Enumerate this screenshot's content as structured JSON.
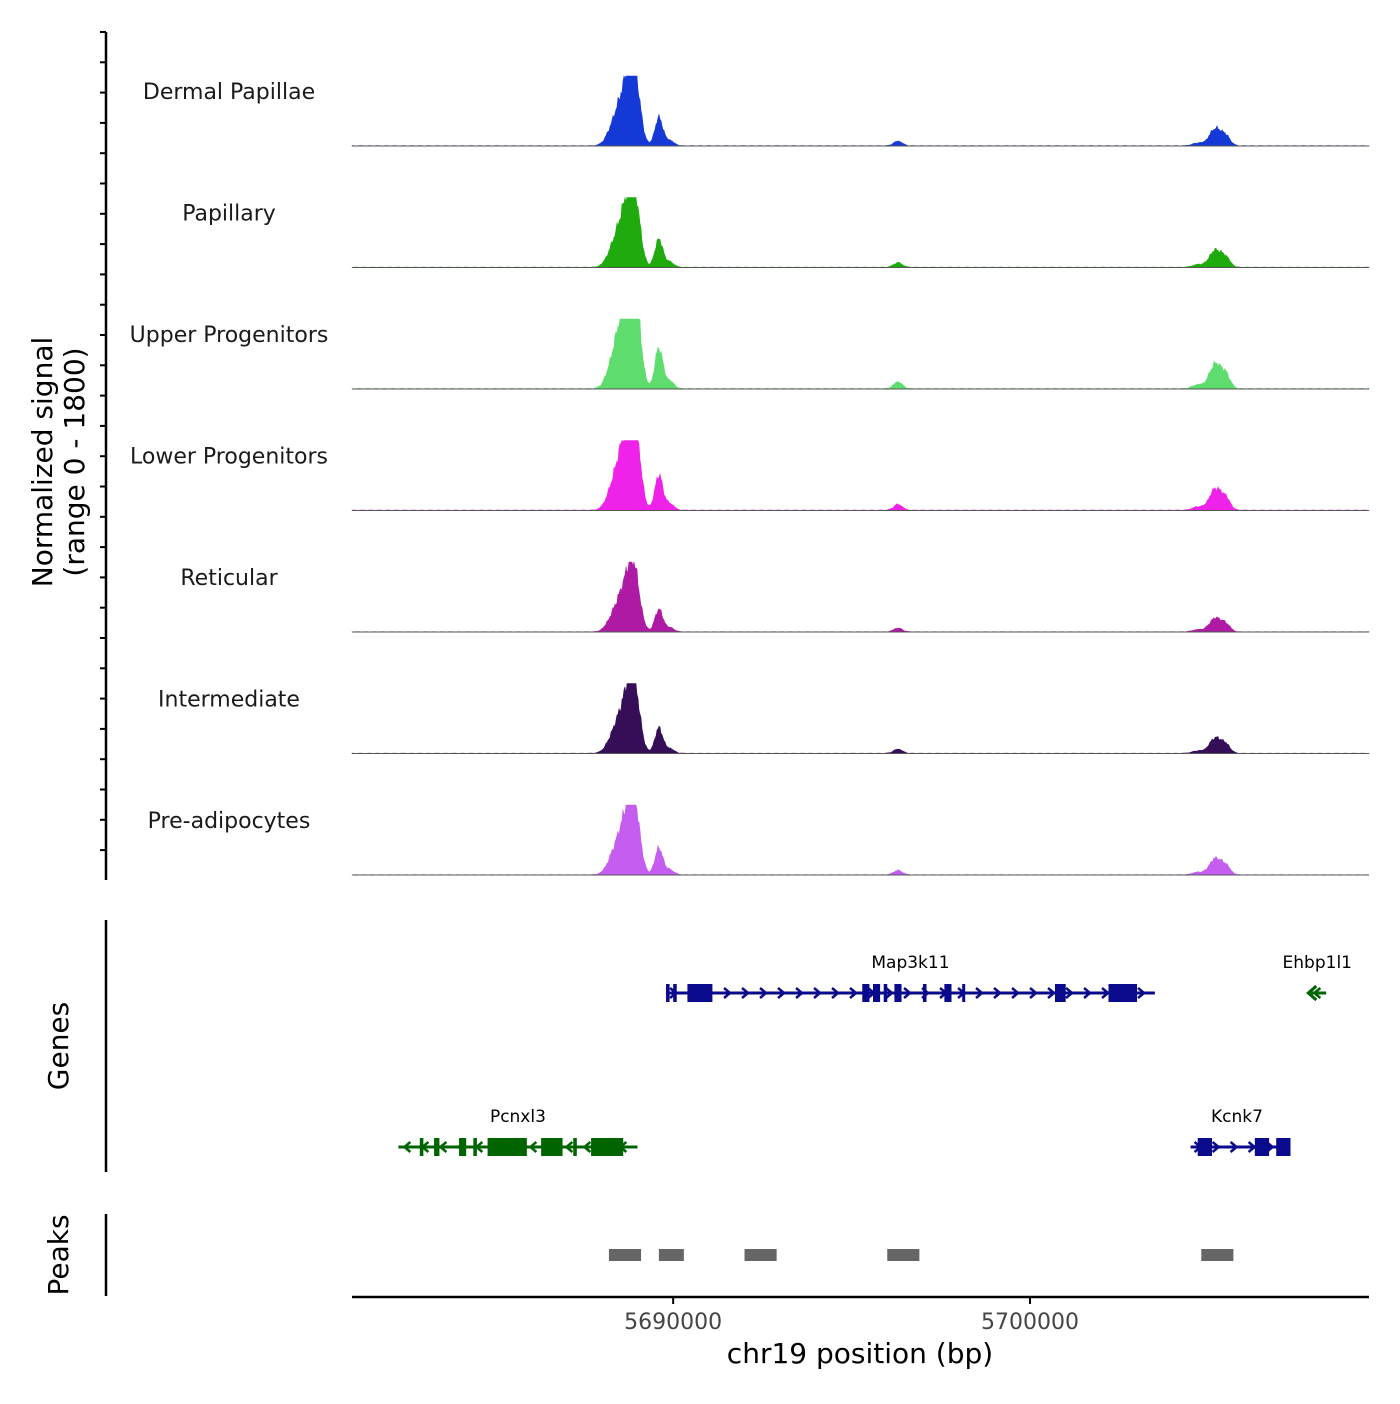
{
  "chart_data": {
    "type": "area",
    "title": "",
    "chromosome": "chr19",
    "xlabel": "chr19 position (bp)",
    "xlim": [
      5681000,
      5709500
    ],
    "x_ticks": [
      {
        "value": 5690000,
        "label": "5690000"
      },
      {
        "value": 5700000,
        "label": "5700000"
      }
    ],
    "signal_ylabel_line1": "Normalized signal",
    "signal_ylabel_line2": "(range 0 - 1800)",
    "ylim": [
      0,
      1800
    ],
    "genes_label": "Genes",
    "peaks_label": "Peaks",
    "peak_profile": [
      {
        "center": 5688300,
        "width": 180,
        "height": 0.18
      },
      {
        "center": 5688650,
        "width": 220,
        "height": 0.75
      },
      {
        "center": 5688900,
        "width": 160,
        "height": 0.95
      },
      {
        "center": 5689600,
        "width": 110,
        "height": 0.42
      },
      {
        "center": 5689900,
        "width": 120,
        "height": 0.08
      },
      {
        "center": 5696300,
        "width": 120,
        "height": 0.07
      },
      {
        "center": 5704700,
        "width": 150,
        "height": 0.04
      },
      {
        "center": 5705200,
        "width": 170,
        "height": 0.26
      },
      {
        "center": 5705500,
        "width": 120,
        "height": 0.12
      }
    ],
    "series": [
      {
        "name": "Dermal Papillae",
        "color": "#1539D6",
        "scale": 1.0
      },
      {
        "name": "Papillary",
        "color": "#1FAA0E",
        "scale": 1.0
      },
      {
        "name": "Upper Progenitors",
        "color": "#5EDC6E",
        "scale": 1.45
      },
      {
        "name": "Lower Progenitors",
        "color": "#EE22E8",
        "scale": 1.25
      },
      {
        "name": "Reticular",
        "color": "#AE1AA4",
        "scale": 0.8
      },
      {
        "name": "Intermediate",
        "color": "#350E57",
        "scale": 0.9
      },
      {
        "name": "Pre-adipocytes",
        "color": "#C45DF0",
        "scale": 0.95
      }
    ],
    "genes": [
      {
        "name": "Map3k11",
        "strand": "+",
        "start": 5689800,
        "end": 5703500,
        "row": 0,
        "color": "#0A0A8C",
        "exons": [
          [
            5689800,
            5689900
          ],
          [
            5690000,
            5690100
          ],
          [
            5690400,
            5691100
          ],
          [
            5695300,
            5695500
          ],
          [
            5695600,
            5695800
          ],
          [
            5695900,
            5696000
          ],
          [
            5696200,
            5696400
          ],
          [
            5697000,
            5697100
          ],
          [
            5697600,
            5697800
          ],
          [
            5698100,
            5698150
          ],
          [
            5700700,
            5701000
          ],
          [
            5702200,
            5703000
          ]
        ]
      },
      {
        "name": "Ehbp1l1",
        "strand": "-",
        "start": 5707800,
        "end": 5708300,
        "row": 0,
        "color": "#006400",
        "exons": []
      },
      {
        "name": "Pcnxl3",
        "strand": "-",
        "start": 5682300,
        "end": 5689000,
        "row": 1,
        "color": "#006400",
        "exons": [
          [
            5682900,
            5683000
          ],
          [
            5683300,
            5683450
          ],
          [
            5684000,
            5684200
          ],
          [
            5684400,
            5684500
          ],
          [
            5684800,
            5685900
          ],
          [
            5686300,
            5686900
          ],
          [
            5687200,
            5687300
          ],
          [
            5687700,
            5688600
          ]
        ]
      },
      {
        "name": "Kcnk7",
        "strand": "+",
        "start": 5704500,
        "end": 5707100,
        "row": 1,
        "color": "#0A0A8C",
        "exons": [
          [
            5704700,
            5705100
          ],
          [
            5706300,
            5706700
          ],
          [
            5706900,
            5707300
          ]
        ]
      }
    ],
    "peaks": [
      {
        "start": 5688200,
        "end": 5689100
      },
      {
        "start": 5689600,
        "end": 5690300
      },
      {
        "start": 5692000,
        "end": 5692900
      },
      {
        "start": 5696000,
        "end": 5696900
      },
      {
        "start": 5704800,
        "end": 5705700
      }
    ]
  }
}
